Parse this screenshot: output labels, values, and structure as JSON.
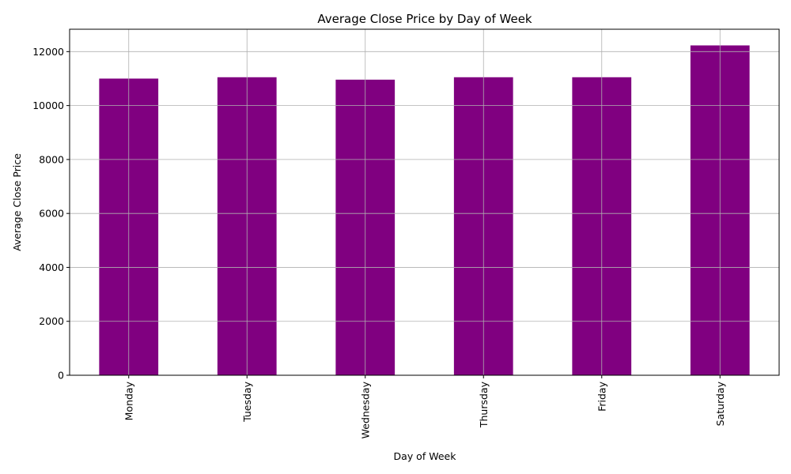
{
  "chart_data": {
    "type": "bar",
    "title": "Average Close Price by Day of Week",
    "xlabel": "Day of Week",
    "ylabel": "Average Close Price",
    "categories": [
      "Monday",
      "Tuesday",
      "Wednesday",
      "Thursday",
      "Friday",
      "Saturday"
    ],
    "values": [
      11000,
      11050,
      10960,
      11050,
      11050,
      12230
    ],
    "ylim": [
      0,
      12830
    ],
    "yticks": [
      0,
      2000,
      4000,
      6000,
      8000,
      10000,
      12000
    ],
    "ytick_labels": [
      "0",
      "2000",
      "4000",
      "6000",
      "8000",
      "10000",
      "12000"
    ],
    "grid": true,
    "legend": "none",
    "x_tick_rotation": "vertical",
    "colors": {
      "bar": "#800080",
      "grid": "#b0b0b0",
      "axis": "#000000"
    }
  }
}
